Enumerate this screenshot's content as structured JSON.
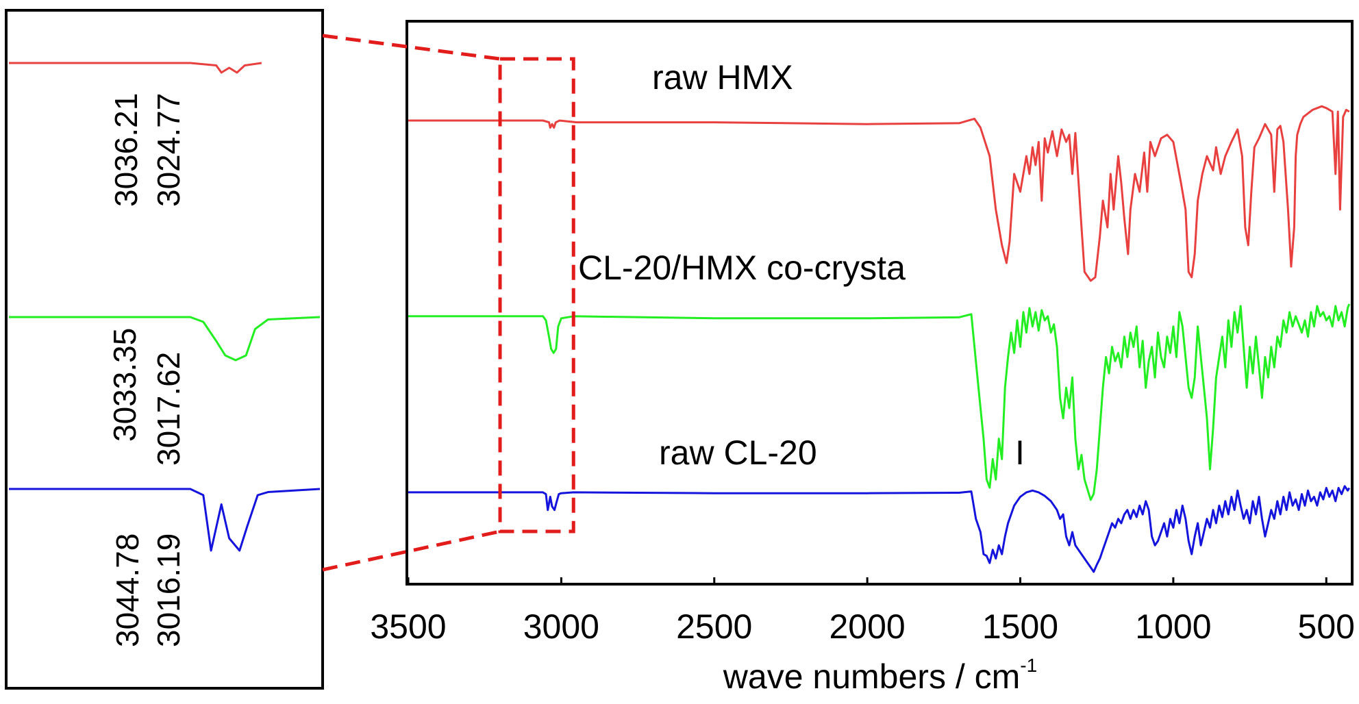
{
  "chart_data": [
    {
      "type": "line",
      "panel": "main",
      "title": "",
      "xlabel": "wave numbers / cm",
      "xlabel_superscript": "-1",
      "ylabel": "",
      "xlim": [
        3500,
        420
      ],
      "x_reversed": true,
      "grid": false,
      "ticks": [
        {
          "value": 3500,
          "label": "3500"
        },
        {
          "value": 3000,
          "label": "3000"
        },
        {
          "value": 2500,
          "label": "2500"
        },
        {
          "value": 2000,
          "label": "2000"
        },
        {
          "value": 1500,
          "label": "1500"
        },
        {
          "value": 1000,
          "label": "1000"
        },
        {
          "value": 500,
          "label": "500"
        }
      ],
      "marker_label": "I",
      "marker_x": 1470,
      "zoom_box_range": [
        3200,
        2960
      ],
      "series": [
        {
          "name": "raw HMX",
          "color": "#e8403f",
          "baseline": 0.91,
          "x": [
            3500,
            3200,
            3060,
            3040,
            3036,
            3030,
            3024,
            3018,
            3005,
            2950,
            2500,
            2000,
            1700,
            1650,
            1630,
            1600,
            1580,
            1560,
            1545,
            1535,
            1520,
            1500,
            1480,
            1470,
            1460,
            1450,
            1440,
            1430,
            1420,
            1410,
            1395,
            1380,
            1365,
            1350,
            1340,
            1330,
            1320,
            1300,
            1290,
            1270,
            1255,
            1240,
            1230,
            1215,
            1205,
            1195,
            1180,
            1170,
            1160,
            1148,
            1140,
            1125,
            1110,
            1095,
            1085,
            1075,
            1060,
            1040,
            1020,
            1000,
            975,
            960,
            950,
            940,
            930,
            920,
            905,
            890,
            870,
            860,
            845,
            830,
            810,
            790,
            775,
            765,
            755,
            745,
            735,
            720,
            700,
            680,
            670,
            660,
            650,
            640,
            625,
            615,
            605,
            600,
            595,
            585,
            575,
            560,
            545,
            530,
            515,
            500,
            480,
            470,
            462,
            455,
            445,
            435,
            425
          ],
          "values": [
            0.9,
            0.9,
            0.9,
            0.89,
            0.86,
            0.88,
            0.86,
            0.89,
            0.9,
            0.89,
            0.89,
            0.88,
            0.885,
            0.91,
            0.86,
            0.7,
            0.4,
            0.2,
            0.1,
            0.22,
            0.6,
            0.5,
            0.7,
            0.6,
            0.75,
            0.65,
            0.78,
            0.45,
            0.8,
            0.72,
            0.84,
            0.7,
            0.85,
            0.78,
            0.82,
            0.6,
            0.83,
            0.3,
            0.05,
            0.0,
            0.02,
            0.25,
            0.45,
            0.3,
            0.6,
            0.4,
            0.7,
            0.55,
            0.35,
            0.15,
            0.4,
            0.6,
            0.5,
            0.72,
            0.5,
            0.78,
            0.7,
            0.8,
            0.82,
            0.78,
            0.55,
            0.4,
            0.05,
            0.02,
            0.15,
            0.45,
            0.6,
            0.7,
            0.62,
            0.75,
            0.6,
            0.7,
            0.78,
            0.85,
            0.7,
            0.3,
            0.2,
            0.5,
            0.75,
            0.8,
            0.88,
            0.82,
            0.5,
            0.85,
            0.87,
            0.78,
            0.4,
            0.08,
            0.3,
            0.7,
            0.82,
            0.88,
            0.92,
            0.94,
            0.96,
            0.97,
            0.98,
            0.97,
            0.95,
            0.6,
            0.95,
            0.4,
            0.92,
            0.96,
            0.95
          ]
        },
        {
          "name": "CL-20/HMX co-crysta",
          "color": "#22ee22",
          "baseline": 0.91,
          "x": [
            3500,
            3200,
            3060,
            3050,
            3040,
            3033,
            3025,
            3017,
            3010,
            3000,
            2960,
            2500,
            2000,
            1700,
            1660,
            1640,
            1620,
            1610,
            1600,
            1590,
            1580,
            1570,
            1560,
            1550,
            1540,
            1530,
            1520,
            1510,
            1500,
            1490,
            1480,
            1470,
            1460,
            1450,
            1440,
            1430,
            1420,
            1410,
            1400,
            1390,
            1380,
            1370,
            1360,
            1350,
            1340,
            1330,
            1320,
            1310,
            1300,
            1290,
            1280,
            1270,
            1260,
            1250,
            1240,
            1230,
            1220,
            1210,
            1200,
            1190,
            1180,
            1170,
            1160,
            1150,
            1140,
            1130,
            1120,
            1110,
            1100,
            1090,
            1080,
            1070,
            1060,
            1050,
            1040,
            1030,
            1020,
            1010,
            1000,
            990,
            980,
            970,
            960,
            950,
            940,
            930,
            920,
            910,
            900,
            890,
            880,
            870,
            860,
            850,
            840,
            830,
            820,
            810,
            800,
            790,
            780,
            770,
            760,
            750,
            740,
            730,
            720,
            710,
            700,
            690,
            680,
            670,
            660,
            650,
            640,
            630,
            620,
            610,
            600,
            590,
            580,
            570,
            560,
            550,
            540,
            530,
            520,
            510,
            500,
            490,
            480,
            470,
            460,
            450,
            440,
            430,
            425
          ],
          "values": [
            0.9,
            0.9,
            0.9,
            0.88,
            0.8,
            0.74,
            0.72,
            0.74,
            0.85,
            0.89,
            0.9,
            0.89,
            0.89,
            0.895,
            0.91,
            0.6,
            0.3,
            0.1,
            0.06,
            0.2,
            0.1,
            0.3,
            0.2,
            0.55,
            0.7,
            0.82,
            0.72,
            0.88,
            0.75,
            0.92,
            0.82,
            0.94,
            0.85,
            0.92,
            0.83,
            0.93,
            0.88,
            0.9,
            0.82,
            0.86,
            0.75,
            0.5,
            0.4,
            0.55,
            0.45,
            0.6,
            0.3,
            0.15,
            0.22,
            0.1,
            0.05,
            0.0,
            0.03,
            0.15,
            0.35,
            0.55,
            0.7,
            0.62,
            0.75,
            0.68,
            0.72,
            0.65,
            0.8,
            0.7,
            0.82,
            0.75,
            0.85,
            0.65,
            0.78,
            0.55,
            0.68,
            0.75,
            0.6,
            0.82,
            0.7,
            0.65,
            0.8,
            0.72,
            0.85,
            0.7,
            0.92,
            0.85,
            0.7,
            0.55,
            0.5,
            0.6,
            0.85,
            0.7,
            0.55,
            0.4,
            0.15,
            0.35,
            0.6,
            0.7,
            0.8,
            0.65,
            0.88,
            0.75,
            0.92,
            0.82,
            0.95,
            0.75,
            0.55,
            0.75,
            0.62,
            0.8,
            0.65,
            0.5,
            0.7,
            0.6,
            0.75,
            0.65,
            0.8,
            0.75,
            0.88,
            0.82,
            0.92,
            0.85,
            0.9,
            0.86,
            0.82,
            0.88,
            0.8,
            0.92,
            0.85,
            0.95,
            0.9,
            0.92,
            0.88,
            0.9,
            0.85,
            0.95,
            0.88,
            0.92,
            0.85,
            0.94,
            0.96
          ]
        },
        {
          "name": "raw CL-20",
          "color": "#1414dd",
          "baseline": 0.91,
          "x": [
            3500,
            3200,
            3060,
            3050,
            3044,
            3036,
            3030,
            3022,
            3016,
            3008,
            3000,
            2960,
            2500,
            2000,
            1700,
            1660,
            1645,
            1630,
            1620,
            1610,
            1600,
            1590,
            1580,
            1570,
            1560,
            1550,
            1540,
            1530,
            1520,
            1510,
            1500,
            1480,
            1460,
            1440,
            1420,
            1400,
            1380,
            1370,
            1360,
            1350,
            1340,
            1330,
            1320,
            1310,
            1300,
            1290,
            1280,
            1270,
            1260,
            1250,
            1240,
            1230,
            1220,
            1210,
            1200,
            1190,
            1180,
            1170,
            1160,
            1150,
            1140,
            1130,
            1120,
            1110,
            1100,
            1090,
            1080,
            1070,
            1060,
            1050,
            1040,
            1030,
            1020,
            1010,
            1000,
            990,
            980,
            970,
            960,
            950,
            940,
            930,
            920,
            910,
            900,
            890,
            880,
            870,
            860,
            850,
            840,
            830,
            820,
            810,
            800,
            790,
            780,
            770,
            760,
            750,
            740,
            730,
            720,
            710,
            700,
            690,
            680,
            670,
            660,
            650,
            640,
            630,
            620,
            610,
            600,
            590,
            580,
            570,
            560,
            550,
            540,
            530,
            520,
            510,
            500,
            490,
            480,
            470,
            460,
            450,
            440,
            430,
            425
          ],
          "values": [
            0.9,
            0.9,
            0.9,
            0.88,
            0.7,
            0.85,
            0.74,
            0.7,
            0.78,
            0.88,
            0.89,
            0.9,
            0.89,
            0.89,
            0.895,
            0.91,
            0.6,
            0.45,
            0.2,
            0.18,
            0.1,
            0.25,
            0.15,
            0.3,
            0.2,
            0.4,
            0.55,
            0.65,
            0.75,
            0.8,
            0.85,
            0.9,
            0.92,
            0.9,
            0.86,
            0.8,
            0.7,
            0.6,
            0.65,
            0.4,
            0.3,
            0.45,
            0.3,
            0.25,
            0.2,
            0.15,
            0.1,
            0.05,
            0.0,
            0.08,
            0.15,
            0.25,
            0.35,
            0.45,
            0.55,
            0.5,
            0.6,
            0.55,
            0.65,
            0.7,
            0.6,
            0.7,
            0.62,
            0.75,
            0.65,
            0.8,
            0.7,
            0.4,
            0.3,
            0.35,
            0.45,
            0.55,
            0.4,
            0.6,
            0.5,
            0.7,
            0.55,
            0.75,
            0.6,
            0.35,
            0.2,
            0.4,
            0.55,
            0.3,
            0.45,
            0.6,
            0.5,
            0.7,
            0.55,
            0.75,
            0.62,
            0.8,
            0.65,
            0.85,
            0.7,
            0.92,
            0.75,
            0.6,
            0.7,
            0.55,
            0.8,
            0.65,
            0.85,
            0.6,
            0.4,
            0.55,
            0.7,
            0.6,
            0.8,
            0.65,
            0.85,
            0.7,
            0.9,
            0.75,
            0.82,
            0.7,
            0.88,
            0.75,
            0.92,
            0.8,
            0.85,
            0.75,
            0.9,
            0.82,
            0.95,
            0.85,
            0.92,
            0.8,
            0.95,
            0.88,
            0.97,
            0.92,
            0.95
          ]
        }
      ]
    },
    {
      "type": "line",
      "panel": "inset",
      "title": "",
      "xlabel": "",
      "ylabel": "",
      "xlim": [
        3200,
        2960
      ],
      "x_reversed": true,
      "grid": false,
      "annotations": [
        {
          "series": 0,
          "labels": [
            "3036.21",
            "3024.77"
          ]
        },
        {
          "series": 1,
          "labels": [
            "3033.35",
            "3017.62"
          ]
        },
        {
          "series": 2,
          "labels": [
            "3044.78",
            "3016.19"
          ]
        }
      ]
    }
  ]
}
